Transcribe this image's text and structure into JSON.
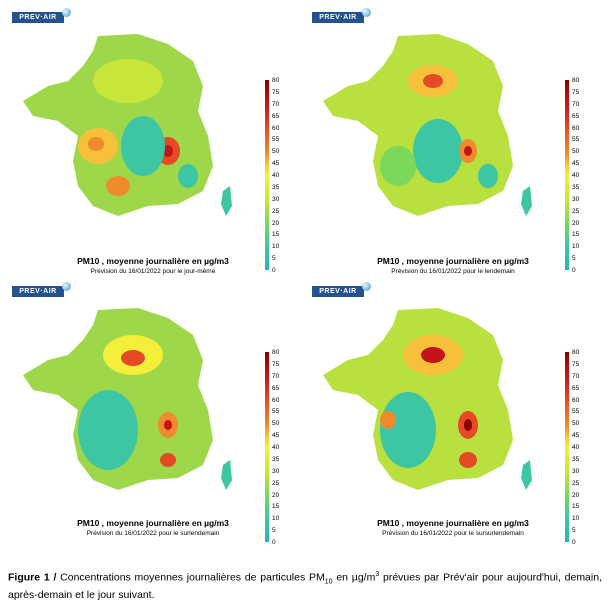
{
  "logo_text": "PREV·AIR",
  "scale": {
    "ticks": [
      "80",
      "75",
      "70",
      "65",
      "60",
      "55",
      "50",
      "45",
      "40",
      "35",
      "30",
      "25",
      "20",
      "15",
      "10",
      "5",
      "0"
    ],
    "colors": {
      "low": "#26b6b2",
      "mid": "#f3ee3a",
      "high": "#8a0000"
    }
  },
  "panels": [
    {
      "title": "PM10 , moyenne journalière en µg/m3",
      "subtitle": "Prévision du 16/01/2022 pour le jour-même"
    },
    {
      "title": "PM10 , moyenne journalière en µg/m3",
      "subtitle": "Prévision du 16/01/2022 pour le lendemain"
    },
    {
      "title": "PM10 , moyenne journalière en µg/m3",
      "subtitle": "Prévision du 16/01/2022 pour le surlendemain"
    },
    {
      "title": "PM10 , moyenne journalière en µg/m3",
      "subtitle": "Prévision du 16/01/2022 pour le sursurlendemain"
    }
  ],
  "caption": {
    "label": "Figure 1 /",
    "text_a": " Concentrations moyennes journalières de particules PM",
    "sub": "10",
    "text_b": " en µg/m",
    "sup": "3",
    "text_c": " prévues par Prév'air pour aujourd'hui, demain, après-demain et le jour suivant."
  }
}
